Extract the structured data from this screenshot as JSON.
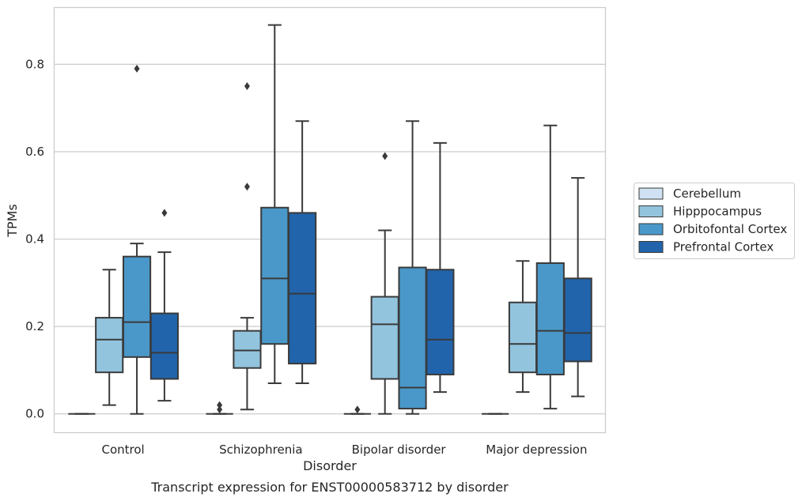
{
  "chart_data": {
    "type": "boxplot",
    "xlabel": "Disorder",
    "ylabel": "TPMs",
    "caption": "Transcript expression for ENST00000583712 by disorder",
    "ylim": [
      -0.043,
      0.93
    ],
    "yticks": [
      0.0,
      0.2,
      0.4,
      0.6,
      0.8
    ],
    "ytick_labels": [
      "0.0",
      "0.2",
      "0.4",
      "0.6",
      "0.8"
    ],
    "grid": "horizontal",
    "legend_position": "right",
    "categories": [
      "Control",
      "Schizophrenia",
      "Bipolar disorder",
      "Major depression"
    ],
    "series": [
      {
        "name": "Cerebellum",
        "color": "#cfe1f2",
        "boxes": [
          {
            "q1": 0.0,
            "median": 0.0,
            "q3": 0.0,
            "whislo": 0.0,
            "whishi": 0.0,
            "fliers": []
          },
          {
            "q1": 0.0,
            "median": 0.0,
            "q3": 0.0,
            "whislo": 0.0,
            "whishi": 0.0,
            "fliers": [
              0.01,
              0.02
            ]
          },
          {
            "q1": 0.0,
            "median": 0.0,
            "q3": 0.0,
            "whislo": 0.0,
            "whishi": 0.0,
            "fliers": [
              0.01
            ]
          },
          {
            "q1": 0.0,
            "median": 0.0,
            "q3": 0.0,
            "whislo": 0.0,
            "whishi": 0.0,
            "fliers": []
          }
        ]
      },
      {
        "name": "Hipppocampus",
        "color": "#93c4de",
        "boxes": [
          {
            "q1": 0.095,
            "median": 0.17,
            "q3": 0.22,
            "whislo": 0.02,
            "whishi": 0.33,
            "fliers": []
          },
          {
            "q1": 0.105,
            "median": 0.145,
            "q3": 0.19,
            "whislo": 0.01,
            "whishi": 0.22,
            "fliers": [
              0.52,
              0.75
            ]
          },
          {
            "q1": 0.08,
            "median": 0.205,
            "q3": 0.268,
            "whislo": 0.0,
            "whishi": 0.42,
            "fliers": [
              0.59
            ]
          },
          {
            "q1": 0.095,
            "median": 0.16,
            "q3": 0.255,
            "whislo": 0.05,
            "whishi": 0.35,
            "fliers": []
          }
        ]
      },
      {
        "name": "Orbitofontal Cortex",
        "color": "#4a98c9",
        "boxes": [
          {
            "q1": 0.13,
            "median": 0.21,
            "q3": 0.36,
            "whislo": 0.0,
            "whishi": 0.39,
            "fliers": [
              0.79
            ]
          },
          {
            "q1": 0.16,
            "median": 0.31,
            "q3": 0.472,
            "whislo": 0.07,
            "whishi": 0.89,
            "fliers": []
          },
          {
            "q1": 0.012,
            "median": 0.06,
            "q3": 0.335,
            "whislo": 0.0,
            "whishi": 0.67,
            "fliers": []
          },
          {
            "q1": 0.09,
            "median": 0.19,
            "q3": 0.345,
            "whislo": 0.012,
            "whishi": 0.66,
            "fliers": []
          }
        ]
      },
      {
        "name": "Prefrontal Cortex",
        "color": "#2164ab",
        "boxes": [
          {
            "q1": 0.08,
            "median": 0.14,
            "q3": 0.23,
            "whislo": 0.03,
            "whishi": 0.37,
            "fliers": [
              0.46
            ]
          },
          {
            "q1": 0.115,
            "median": 0.275,
            "q3": 0.46,
            "whislo": 0.07,
            "whishi": 0.67,
            "fliers": []
          },
          {
            "q1": 0.09,
            "median": 0.17,
            "q3": 0.33,
            "whislo": 0.05,
            "whishi": 0.62,
            "fliers": []
          },
          {
            "q1": 0.12,
            "median": 0.185,
            "q3": 0.31,
            "whislo": 0.04,
            "whishi": 0.54,
            "fliers": []
          }
        ]
      }
    ]
  }
}
